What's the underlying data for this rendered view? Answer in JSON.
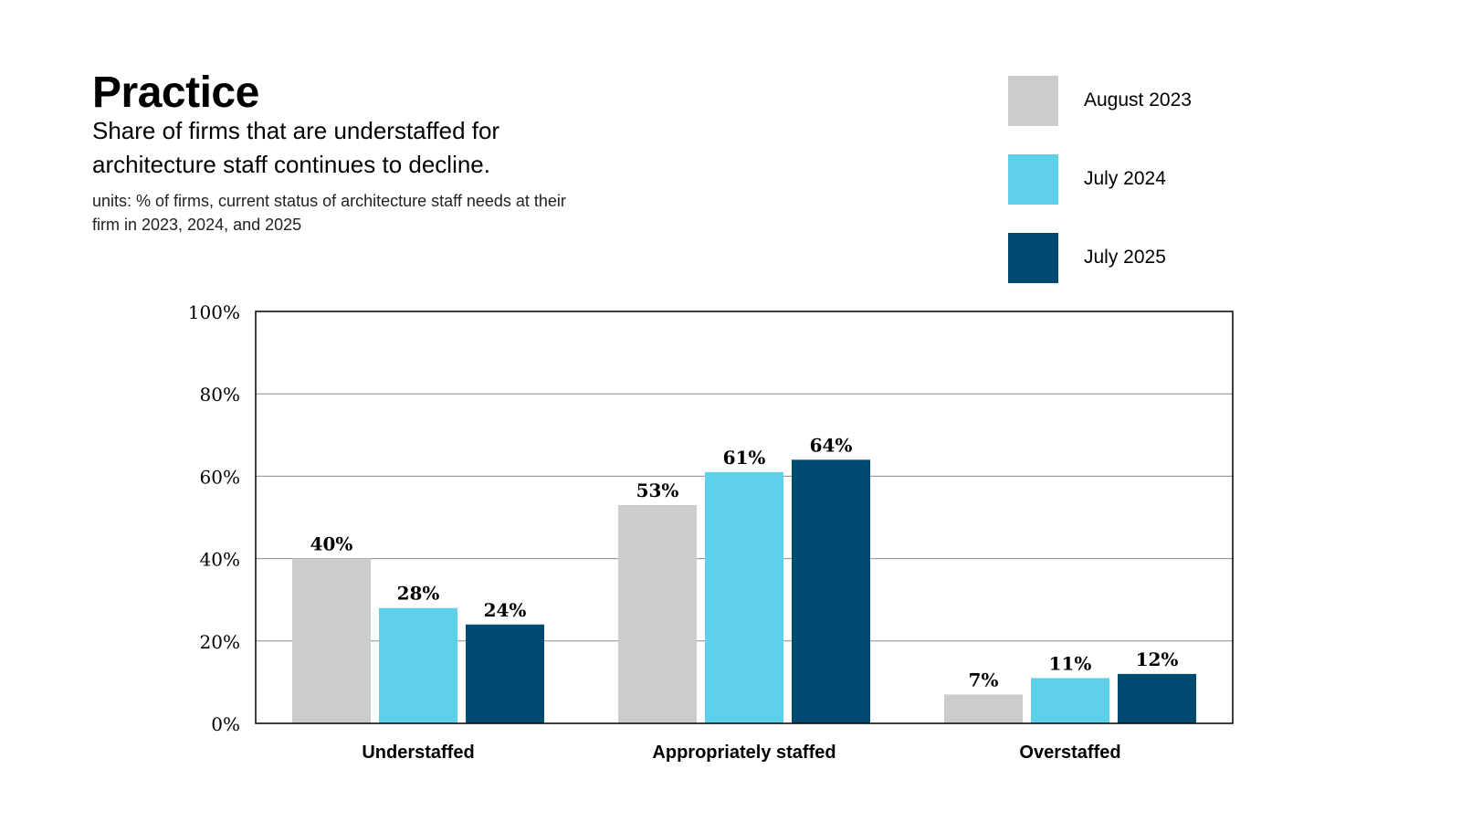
{
  "chart_data": {
    "type": "bar",
    "title": "Practice",
    "subtitle": "Share of firms that are understaffed for architecture staff continues to decline.",
    "units_note": "units: % of firms, current status of architecture staff needs at their firm in 2023, 2024, and 2025",
    "categories": [
      "Understaffed",
      "Appropriately staffed",
      "Overstaffed"
    ],
    "series": [
      {
        "name": "August 2023",
        "color": "#cccccc",
        "values": [
          40,
          53,
          7
        ],
        "labels": [
          "40%",
          "53%",
          "7%"
        ]
      },
      {
        "name": "July 2024",
        "color": "#5ed0ea",
        "values": [
          28,
          61,
          11
        ],
        "labels": [
          "28%",
          "61%",
          "11%"
        ]
      },
      {
        "name": "July 2025",
        "color": "#004970",
        "values": [
          24,
          64,
          12
        ],
        "labels": [
          "24%",
          "64%",
          "12%"
        ]
      }
    ],
    "y_ticks": [
      0,
      20,
      40,
      60,
      80,
      100
    ],
    "y_tick_labels": [
      "0%",
      "20%",
      "40%",
      "60%",
      "80%",
      "100%"
    ],
    "ylim": [
      0,
      100
    ],
    "grid": true,
    "legend_position": "top-right",
    "xlabel": "",
    "ylabel": ""
  }
}
